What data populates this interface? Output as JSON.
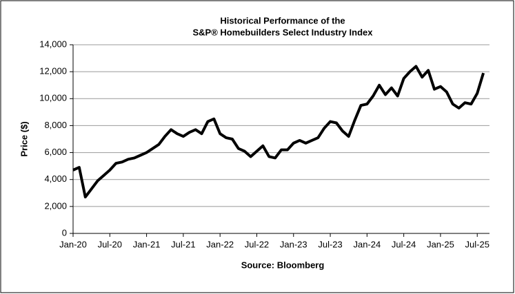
{
  "chart_data": {
    "type": "line",
    "title": [
      "Historical Performance of the",
      "S&P® Homebuilders Select Industry Index"
    ],
    "y_label": "Price ($)",
    "annotation": "Source: Bloomberg",
    "x": [
      "2020-01",
      "2020-02",
      "2020-03",
      "2020-04",
      "2020-05",
      "2020-06",
      "2020-07",
      "2020-08",
      "2020-09",
      "2020-10",
      "2020-11",
      "2020-12",
      "2021-01",
      "2021-02",
      "2021-03",
      "2021-04",
      "2021-05",
      "2021-06",
      "2021-07",
      "2021-08",
      "2021-09",
      "2021-10",
      "2021-11",
      "2021-12",
      "2022-01",
      "2022-02",
      "2022-03",
      "2022-04",
      "2022-05",
      "2022-06",
      "2022-07",
      "2022-08",
      "2022-09",
      "2022-10",
      "2022-11",
      "2022-12",
      "2023-01",
      "2023-02",
      "2023-03",
      "2023-04",
      "2023-05",
      "2023-06",
      "2023-07",
      "2023-08",
      "2023-09",
      "2023-10",
      "2023-11",
      "2023-12",
      "2024-01",
      "2024-02",
      "2024-03",
      "2024-04",
      "2024-05",
      "2024-06",
      "2024-07",
      "2024-08",
      "2024-09",
      "2024-10",
      "2024-11",
      "2024-12",
      "2025-01",
      "2025-02",
      "2025-03",
      "2025-04",
      "2025-05",
      "2025-06",
      "2025-07",
      "2025-08"
    ],
    "series": [
      {
        "name": "S&P Homebuilders Select Industry Index",
        "color": "#000000",
        "values": [
          4700,
          4900,
          2700,
          3300,
          3900,
          4300,
          4700,
          5200,
          5300,
          5500,
          5600,
          5800,
          6000,
          6300,
          6600,
          7200,
          7700,
          7400,
          7200,
          7500,
          7700,
          7400,
          8300,
          8500,
          7400,
          7100,
          7000,
          6300,
          6100,
          5700,
          6100,
          6500,
          5700,
          5600,
          6200,
          6200,
          6700,
          6900,
          6700,
          6900,
          7100,
          7800,
          8300,
          8200,
          7600,
          7200,
          8400,
          9500,
          9600,
          10200,
          11000,
          10300,
          10800,
          10200,
          11500,
          12000,
          12400,
          11600,
          12100,
          10700,
          10900,
          10500,
          9600,
          9300,
          9700,
          9600,
          10400,
          11900
        ]
      }
    ],
    "xlim": [
      "2020-01",
      "2025-09"
    ],
    "xticks": [
      {
        "value": "2020-01",
        "label": "Jan-20"
      },
      {
        "value": "2020-07",
        "label": "Jul-20"
      },
      {
        "value": "2021-01",
        "label": "Jan-21"
      },
      {
        "value": "2021-07",
        "label": "Jul-21"
      },
      {
        "value": "2022-01",
        "label": "Jan-22"
      },
      {
        "value": "2022-07",
        "label": "Jul-22"
      },
      {
        "value": "2023-01",
        "label": "Jan-23"
      },
      {
        "value": "2023-07",
        "label": "Jul-23"
      },
      {
        "value": "2024-01",
        "label": "Jan-24"
      },
      {
        "value": "2024-07",
        "label": "Jul-24"
      },
      {
        "value": "2025-01",
        "label": "Jan-25"
      },
      {
        "value": "2025-07",
        "label": "Jul-25"
      }
    ],
    "ylim": [
      0,
      14000
    ],
    "yticks": [
      0,
      {
        "value": 2000,
        "label": "2,000"
      },
      {
        "value": 4000,
        "label": "4,000"
      },
      {
        "value": 6000,
        "label": "6,000"
      },
      {
        "value": 8000,
        "label": "8,000"
      },
      {
        "value": 10000,
        "label": "10,000"
      },
      {
        "value": 12000,
        "label": "12,000"
      },
      {
        "value": 14000,
        "label": "14,000"
      }
    ],
    "grid": true
  }
}
